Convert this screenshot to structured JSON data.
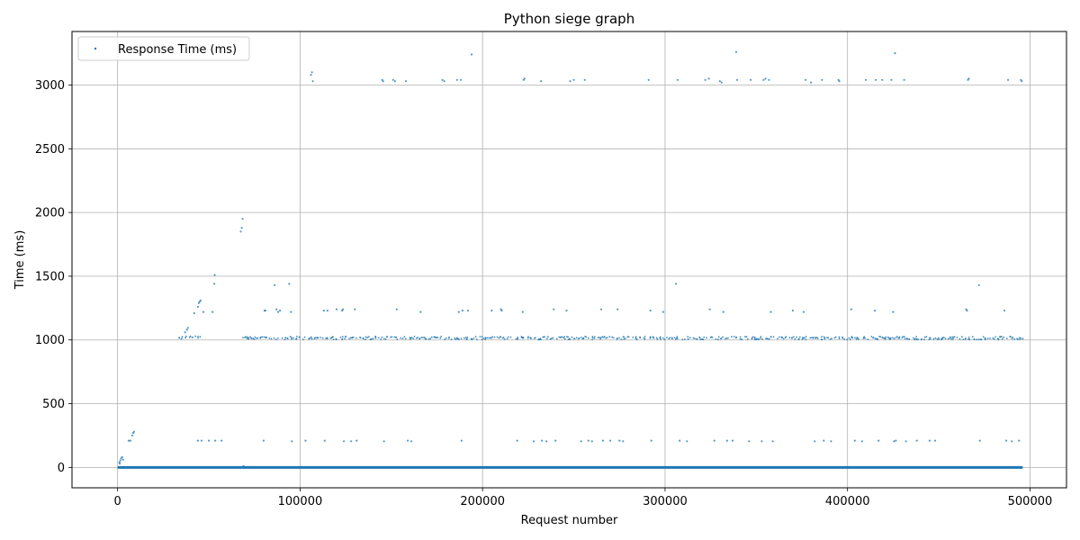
{
  "chart_data": {
    "type": "scatter",
    "title": "Python siege graph",
    "xlabel": "Request number",
    "ylabel": "Time (ms)",
    "xlim": [
      -25000,
      520000
    ],
    "ylim": [
      -160,
      3420
    ],
    "xticks": [
      0,
      100000,
      200000,
      300000,
      400000,
      500000
    ],
    "yticks": [
      0,
      500,
      1000,
      1500,
      2000,
      2500,
      3000
    ],
    "grid": true,
    "legend_position": "top-left",
    "series": [
      {
        "name": "Response Time (ms)",
        "color": "#1f77b4",
        "marker": "point",
        "baseline": {
          "value": 0,
          "x_range": [
            0,
            496000
          ]
        },
        "clusters": [
          {
            "y": 1015,
            "y_spread": 12,
            "x_range": [
              69000,
              496000
            ],
            "step": 1600
          },
          {
            "y": 1022,
            "y_spread": 8,
            "x_range": [
              34000,
              46000
            ],
            "step": 2200
          }
        ],
        "points": [
          [
            1000,
            40
          ],
          [
            1500,
            55
          ],
          [
            2000,
            70
          ],
          [
            2500,
            80
          ],
          [
            3000,
            60
          ],
          [
            1200,
            30
          ],
          [
            6000,
            210
          ],
          [
            7000,
            210
          ],
          [
            8000,
            250
          ],
          [
            8500,
            270
          ],
          [
            9000,
            280
          ],
          [
            35000,
            1010
          ],
          [
            37000,
            1060
          ],
          [
            38000,
            1080
          ],
          [
            38500,
            1095
          ],
          [
            41000,
            1020
          ],
          [
            42000,
            1210
          ],
          [
            44000,
            1260
          ],
          [
            44500,
            1290
          ],
          [
            45000,
            1300
          ],
          [
            45500,
            1310
          ],
          [
            44000,
            210
          ],
          [
            46000,
            210
          ],
          [
            47000,
            1220
          ],
          [
            50000,
            210
          ],
          [
            52000,
            1220
          ],
          [
            53000,
            1440
          ],
          [
            53200,
            1510
          ],
          [
            53500,
            210
          ],
          [
            57000,
            210
          ],
          [
            67500,
            1850
          ],
          [
            68000,
            1880
          ],
          [
            68500,
            1950
          ],
          [
            69000,
            10
          ],
          [
            80000,
            210
          ],
          [
            80500,
            1230
          ],
          [
            81000,
            1230
          ],
          [
            86000,
            1430
          ],
          [
            87000,
            1240
          ],
          [
            88000,
            1220
          ],
          [
            89000,
            1230
          ],
          [
            94000,
            1440
          ],
          [
            95000,
            1220
          ],
          [
            95500,
            205
          ],
          [
            103000,
            210
          ],
          [
            106000,
            3080
          ],
          [
            106500,
            3100
          ],
          [
            107000,
            3030
          ],
          [
            113000,
            1230
          ],
          [
            113500,
            210
          ],
          [
            115000,
            1230
          ],
          [
            120000,
            1240
          ],
          [
            123000,
            1230
          ],
          [
            123500,
            1240
          ],
          [
            124000,
            205
          ],
          [
            128000,
            205
          ],
          [
            130000,
            1240
          ],
          [
            131000,
            210
          ],
          [
            145000,
            3040
          ],
          [
            145500,
            3030
          ],
          [
            146000,
            205
          ],
          [
            151000,
            3040
          ],
          [
            152000,
            3030
          ],
          [
            153000,
            1240
          ],
          [
            158000,
            3030
          ],
          [
            159000,
            210
          ],
          [
            161000,
            205
          ],
          [
            166000,
            1220
          ],
          [
            178000,
            3040
          ],
          [
            179000,
            3030
          ],
          [
            186000,
            3040
          ],
          [
            187000,
            1220
          ],
          [
            188000,
            3040
          ],
          [
            188500,
            210
          ],
          [
            189000,
            1230
          ],
          [
            192000,
            1230
          ],
          [
            194000,
            3240
          ],
          [
            205000,
            1230
          ],
          [
            210000,
            1240
          ],
          [
            210500,
            1230
          ],
          [
            219000,
            210
          ],
          [
            222000,
            1220
          ],
          [
            222500,
            3040
          ],
          [
            223000,
            3050
          ],
          [
            228000,
            205
          ],
          [
            232000,
            3030
          ],
          [
            232500,
            210
          ],
          [
            235000,
            205
          ],
          [
            239000,
            1240
          ],
          [
            240000,
            210
          ],
          [
            246000,
            1230
          ],
          [
            248000,
            3030
          ],
          [
            250000,
            3040
          ],
          [
            254000,
            205
          ],
          [
            256000,
            3040
          ],
          [
            258000,
            210
          ],
          [
            260000,
            205
          ],
          [
            265000,
            1240
          ],
          [
            266000,
            210
          ],
          [
            270000,
            210
          ],
          [
            274000,
            1240
          ],
          [
            275000,
            210
          ],
          [
            277000,
            205
          ],
          [
            291000,
            3040
          ],
          [
            292000,
            1230
          ],
          [
            292500,
            210
          ],
          [
            299000,
            1220
          ],
          [
            306000,
            1440
          ],
          [
            307000,
            3040
          ],
          [
            308000,
            210
          ],
          [
            312000,
            205
          ],
          [
            322000,
            3040
          ],
          [
            324000,
            3050
          ],
          [
            324500,
            1240
          ],
          [
            327000,
            210
          ],
          [
            330000,
            3030
          ],
          [
            331000,
            3020
          ],
          [
            332000,
            1220
          ],
          [
            334000,
            210
          ],
          [
            337000,
            210
          ],
          [
            339000,
            3260
          ],
          [
            339500,
            3040
          ],
          [
            346000,
            205
          ],
          [
            347000,
            3040
          ],
          [
            353000,
            205
          ],
          [
            354000,
            3040
          ],
          [
            355000,
            3050
          ],
          [
            357000,
            3040
          ],
          [
            358000,
            1220
          ],
          [
            359000,
            205
          ],
          [
            370000,
            1230
          ],
          [
            376000,
            1220
          ],
          [
            377000,
            3040
          ],
          [
            380000,
            3020
          ],
          [
            382000,
            205
          ],
          [
            386000,
            3040
          ],
          [
            387000,
            210
          ],
          [
            391000,
            205
          ],
          [
            395000,
            3040
          ],
          [
            395500,
            3030
          ],
          [
            402000,
            1240
          ],
          [
            404000,
            210
          ],
          [
            408000,
            205
          ],
          [
            410000,
            3040
          ],
          [
            415000,
            1230
          ],
          [
            415500,
            3040
          ],
          [
            417000,
            210
          ],
          [
            419000,
            3040
          ],
          [
            424000,
            3040
          ],
          [
            425000,
            1220
          ],
          [
            425500,
            205
          ],
          [
            426000,
            3250
          ],
          [
            426500,
            210
          ],
          [
            431000,
            3040
          ],
          [
            432000,
            205
          ],
          [
            438000,
            210
          ],
          [
            445000,
            210
          ],
          [
            448000,
            210
          ],
          [
            465000,
            1240
          ],
          [
            465500,
            1230
          ],
          [
            466000,
            3040
          ],
          [
            466500,
            3050
          ],
          [
            472000,
            1430
          ],
          [
            472500,
            210
          ],
          [
            486000,
            1230
          ],
          [
            487000,
            210
          ],
          [
            488000,
            3040
          ],
          [
            490000,
            205
          ],
          [
            494000,
            210
          ],
          [
            495000,
            3040
          ],
          [
            495500,
            3030
          ],
          [
            496000,
            1010
          ]
        ]
      }
    ]
  }
}
